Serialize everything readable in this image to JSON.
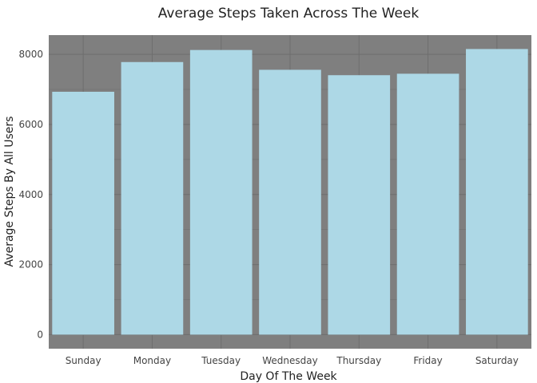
{
  "chart_data": {
    "type": "bar",
    "title": "Average Steps Taken Across The Week",
    "xlabel": "Day Of The Week",
    "ylabel": "Average Steps By All Users",
    "categories": [
      "Sunday",
      "Monday",
      "Tuesday",
      "Wednesday",
      "Thursday",
      "Friday",
      "Saturday"
    ],
    "values": [
      6933,
      7781,
      8125,
      7560,
      7406,
      7448,
      8153
    ],
    "ylim": [
      -400,
      8550
    ],
    "yticks": [
      0,
      2000,
      4000,
      6000,
      8000
    ],
    "ytick_labels": [
      "0",
      "2000",
      "4000",
      "6000",
      "8000"
    ],
    "grid": true,
    "legend": "none",
    "colors": {
      "bar": "#add8e6",
      "panel": "#7f7f7f",
      "grid": "#6e6e6e"
    }
  }
}
